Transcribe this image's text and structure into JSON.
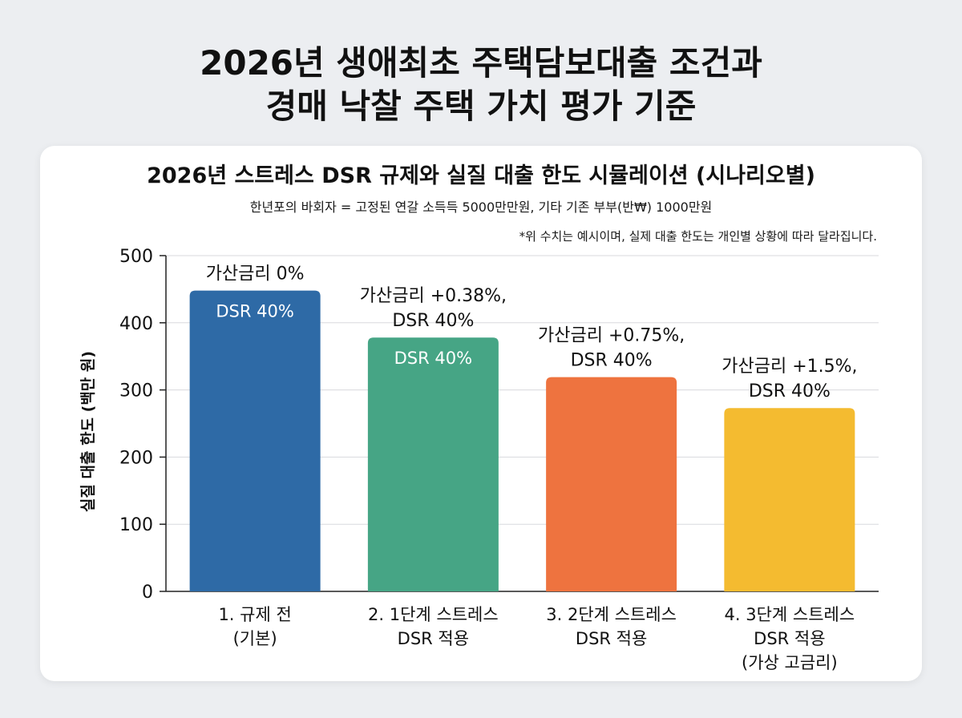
{
  "page": {
    "title_line1": "2026년 생애최초 주택담보대출 조건과",
    "title_line2": "경매 낙찰 주택 가치 평가 기준"
  },
  "chart_data": {
    "type": "bar",
    "title": "2026년 스트레스 DSR 규제와 실질 대출 한도 시뮬레이션 (시나리오별)",
    "subtitle": "한년포의 바회자 = 고정된 연갈 소득득 5000만만원, 기타 기존 부부(반₩) 1000만원",
    "note": "*위 수치는 예시이며, 실제 대출 한도는 개인별 상황에 따라 달라집니다.",
    "ylabel": "실질 대출 한도 (백만 원)",
    "xlabel": "",
    "ylim": [
      0,
      500
    ],
    "yticks": [
      0,
      100,
      200,
      300,
      400,
      500
    ],
    "grid": true,
    "categories": [
      [
        "1. 규제 전",
        "(기본)"
      ],
      [
        "2. 1단계 스트레스",
        "DSR 적용"
      ],
      [
        "3. 2단계 스트레스",
        "DSR 적용"
      ],
      [
        "4. 3단계 스트레스",
        "DSR 적용",
        "(가상 고금리)"
      ]
    ],
    "values": [
      448,
      378,
      319,
      273
    ],
    "colors": [
      "#2e6aa6",
      "#46a585",
      "#ee733f",
      "#f4bb30"
    ],
    "annotations_above": [
      [
        "가산금리 0%"
      ],
      [
        "가산금리 +0.38%,",
        "DSR 40%"
      ],
      [
        "가산금리 +0.75%,",
        "DSR 40%"
      ],
      [
        "가산금리 +1.5%,",
        "DSR 40%"
      ]
    ],
    "labels_inside": [
      "DSR 40%",
      "DSR 40%",
      "",
      ""
    ]
  }
}
